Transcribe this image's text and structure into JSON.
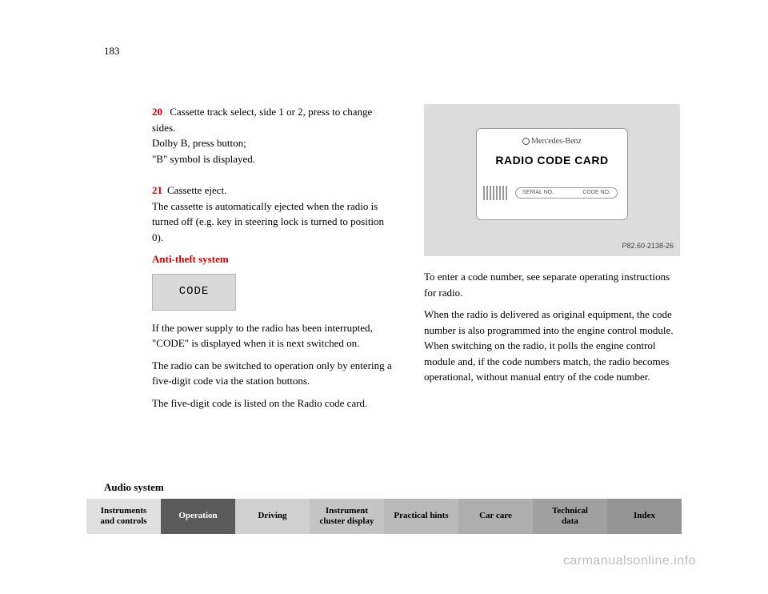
{
  "page_number": "183",
  "left_column": {
    "item20": {
      "num": "20",
      "text": " Cassette track select, side 1 or 2, press to change sides.\nDolby B, press button;\n\"B\" symbol is displayed."
    },
    "item21": {
      "num": "21",
      "text": "Cassette eject.\nThe cassette is automatically ejected when the radio is turned off (e.g. key in steering lock is turned to position 0)."
    },
    "heading": "Anti-theft system",
    "code_label": "CODE",
    "para1": "If the power supply to the radio has been interrupted, \"CODE\" is displayed when it is next switched on.",
    "para2": "The radio can be switched to operation only by entering a five-digit code via the station buttons.",
    "para3": "The five-digit code is listed on the Radio code card."
  },
  "right_column": {
    "card": {
      "brand": "Mercedes-Benz",
      "title": "RADIO CODE CARD",
      "serial_label": "SERIAL NO.",
      "code_label": "CODE NO.",
      "fig_ref": "P82.60-2138-26"
    },
    "para1": "To enter a code number, see separate operating instructions for radio.",
    "para2": "When the radio is delivered as original equipment, the code number is also programmed into the engine control module. When switching on the radio, it polls the engine control module and, if the code numbers match, the radio becomes operational, without manual entry of the code number."
  },
  "section_label": "Audio system",
  "tabs": [
    {
      "label": "Instruments\nand controls",
      "bg": "#e0e0e0",
      "fg": "#000000"
    },
    {
      "label": "Operation",
      "bg": "#5a5a5a",
      "fg": "#ffffff"
    },
    {
      "label": "Driving",
      "bg": "#d0d0d0",
      "fg": "#000000"
    },
    {
      "label": "Instrument\ncluster display",
      "bg": "#c4c4c4",
      "fg": "#000000"
    },
    {
      "label": "Practical hints",
      "bg": "#bababa",
      "fg": "#000000"
    },
    {
      "label": "Car care",
      "bg": "#aeaeae",
      "fg": "#000000"
    },
    {
      "label": "Technical\ndata",
      "bg": "#a0a0a0",
      "fg": "#000000"
    },
    {
      "label": "Index",
      "bg": "#949494",
      "fg": "#000000"
    }
  ],
  "watermark": "carmanualsonline.info"
}
